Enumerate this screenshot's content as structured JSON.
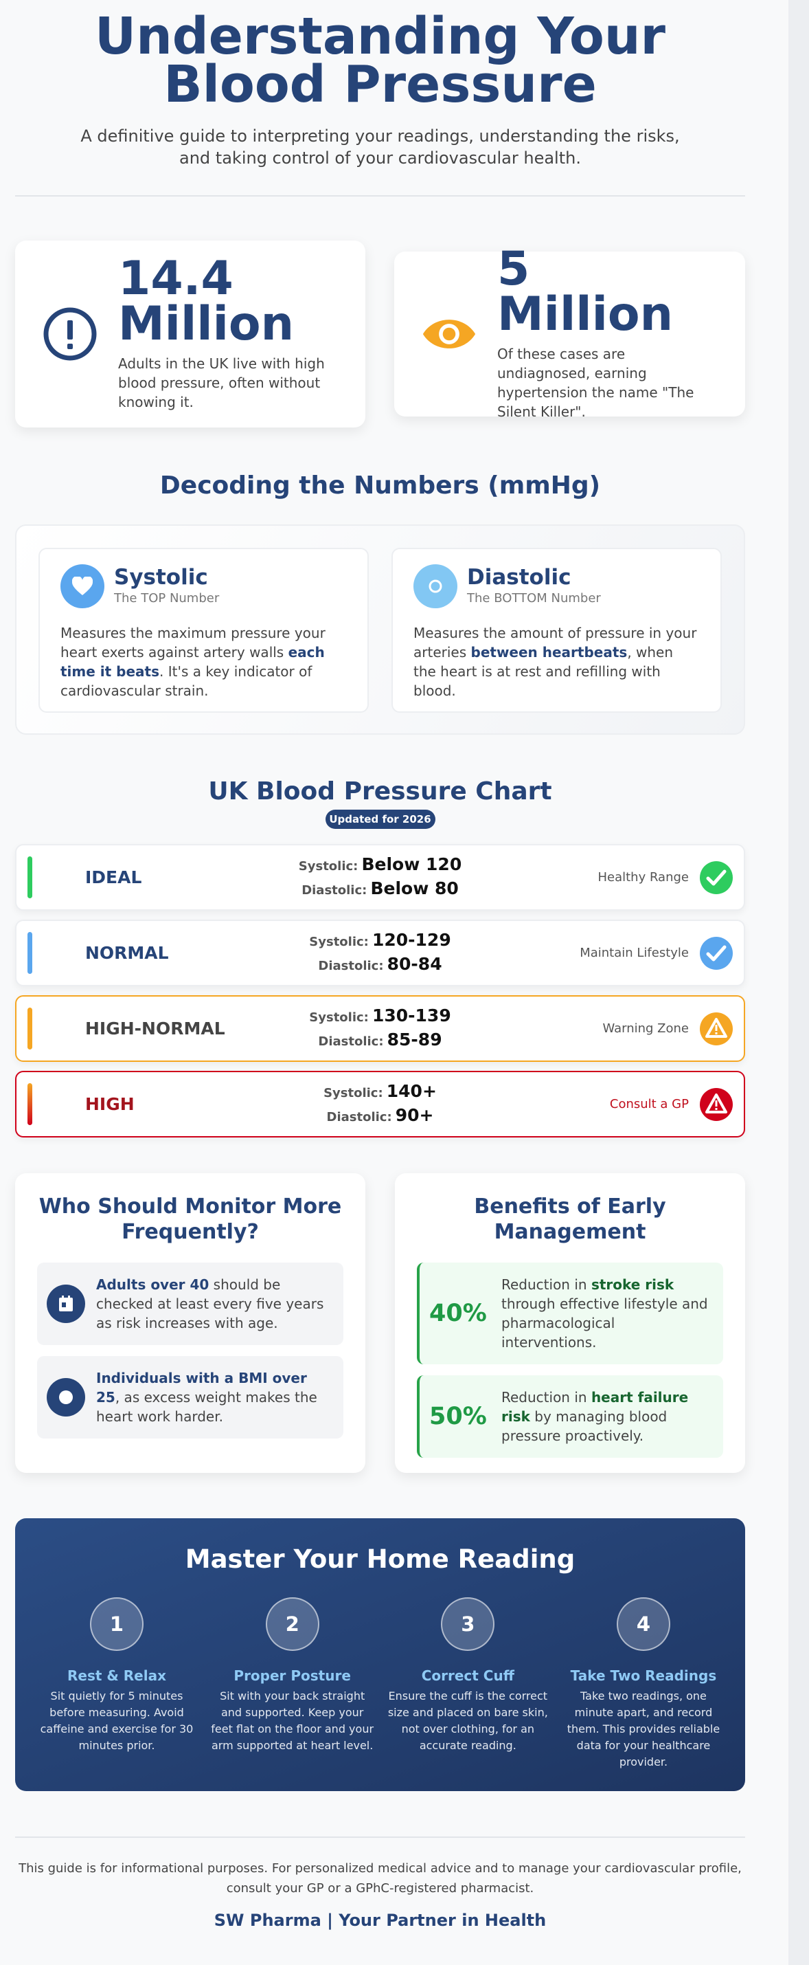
{
  "header": {
    "title": "Understanding Your Blood Pressure",
    "subtitle": "A definitive guide to interpreting your readings, understanding the risks, and taking control of your cardiovascular health."
  },
  "stats": [
    {
      "icon": "exclamation-circle-icon",
      "value": "14.4 Million",
      "desc": "Adults in the UK live with high blood pressure, often without knowing it.",
      "color": "#264478"
    },
    {
      "icon": "eye-icon",
      "value": "5 Million",
      "desc": "Of these cases are undiagnosed, earning hypertension the name \"The Silent Killer\".",
      "color": "#f5a623"
    }
  ],
  "decoding": {
    "title": "Decoding the Numbers (mmHg)",
    "systolic": {
      "icon": "heart-icon",
      "title": "Systolic",
      "subtitle": "The TOP Number",
      "text_a": "Measures the maximum pressure your heart exerts against artery walls ",
      "bold": "each time it beats",
      "text_b": ". It's a key indicator of cardiovascular strain."
    },
    "diastolic": {
      "icon": "circle-icon",
      "title": "Diastolic",
      "subtitle": "The BOTTOM Number",
      "text_a": "Measures the amount of pressure in your arteries ",
      "bold": "between heartbeats",
      "text_b": ", when the heart is at rest and refilling with blood."
    }
  },
  "chart": {
    "title": "UK Blood Pressure Chart",
    "badge": "Updated for 2026",
    "systolic_label": "Systolic:",
    "diastolic_label": "Diastolic:",
    "rows": [
      {
        "label": "IDEAL",
        "systolic": "Below 120",
        "diastolic": "Below 80",
        "status": "Healthy Range",
        "icon": "check-icon",
        "color": "#2ecc5f"
      },
      {
        "label": "NORMAL",
        "systolic": "120-129",
        "diastolic": "80-84",
        "status": "Maintain Lifestyle",
        "icon": "check-icon",
        "color": "#5aa6ee"
      },
      {
        "label": "HIGH-NORMAL",
        "systolic": "130-139",
        "diastolic": "85-89",
        "status": "Warning Zone",
        "icon": "warning-icon",
        "color": "#f5a623"
      },
      {
        "label": "HIGH",
        "systolic": "140+",
        "diastolic": "90+",
        "status": "Consult a GP",
        "icon": "warning-icon",
        "color": "#d0021b"
      }
    ]
  },
  "monitor": {
    "title": "Who Should Monitor More Frequently?",
    "items": [
      {
        "icon": "calendar-icon",
        "bold": "Adults over 40",
        "text": " should be checked at least every five years as risk increases with age."
      },
      {
        "icon": "circle-icon",
        "bold": "Individuals with a BMI over 25",
        "text": ", as excess weight makes the heart work harder."
      }
    ]
  },
  "benefits": {
    "title": "Benefits of Early Management",
    "items": [
      {
        "percent": "40%",
        "text_a": "Reduction in ",
        "bold": "stroke risk",
        "text_b": " through effective lifestyle and pharmacological interventions."
      },
      {
        "percent": "50%",
        "text_a": "Reduction in ",
        "bold": "heart failure risk",
        "text_b": " by managing blood pressure proactively."
      }
    ]
  },
  "home": {
    "title": "Master Your Home Reading",
    "steps": [
      {
        "num": "1",
        "title": "Rest & Relax",
        "desc": "Sit quietly for 5 minutes before measuring. Avoid caffeine and exercise for 30 minutes prior."
      },
      {
        "num": "2",
        "title": "Proper Posture",
        "desc": "Sit with your back straight and supported. Keep your feet flat on the floor and your arm supported at heart level."
      },
      {
        "num": "3",
        "title": "Correct Cuff",
        "desc": "Ensure the cuff is the correct size and placed on bare skin, not over clothing, for an accurate reading."
      },
      {
        "num": "4",
        "title": "Take Two Readings",
        "desc": "Take two readings, one minute apart, and record them. This provides reliable data for your healthcare provider."
      }
    ]
  },
  "footer": {
    "disclaimer": "This guide is for informational purposes. For personalized medical advice and to manage your cardiovascular profile, consult your GP or a GPhC-registered pharmacist.",
    "brand": "SW Pharma | Your Partner in Health"
  }
}
